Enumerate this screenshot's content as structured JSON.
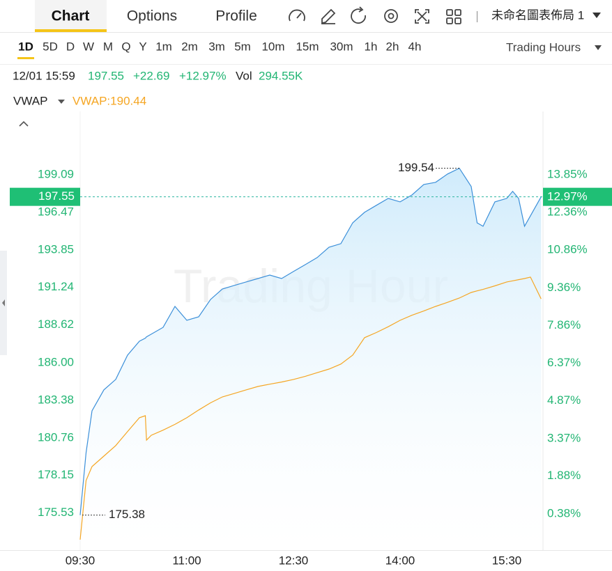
{
  "tabs": [
    "Chart",
    "Options",
    "Profile"
  ],
  "layout_name": "未命名圖表佈局 1",
  "timeframes": [
    "1D",
    "5D",
    "D",
    "W",
    "M",
    "Q",
    "Y",
    "1m",
    "2m",
    "3m",
    "5m",
    "10m",
    "15m",
    "30m",
    "1h",
    "2h",
    "4h"
  ],
  "session_menu": "Trading Hours",
  "info": {
    "time": "12/01 15:59",
    "price": "197.55",
    "change": "+22.69",
    "change_pct": "+12.97%",
    "vol_label": "Vol",
    "volume": "294.55K"
  },
  "indicator": {
    "name": "VWAP",
    "value_label": "VWAP:190.44"
  },
  "watermark": "Trading Hour",
  "chart_data": {
    "type": "line",
    "x": [
      "09:30",
      "09:35",
      "09:40",
      "09:50",
      "10:00",
      "10:10",
      "10:20",
      "10:25",
      "10:26",
      "10:30",
      "10:40",
      "10:50",
      "11:00",
      "11:10",
      "11:20",
      "11:30",
      "11:40",
      "11:50",
      "12:00",
      "12:10",
      "12:20",
      "12:30",
      "12:40",
      "12:50",
      "13:00",
      "13:10",
      "13:20",
      "13:30",
      "13:40",
      "13:50",
      "14:00",
      "14:10",
      "14:20",
      "14:30",
      "14:40",
      "14:50",
      "15:00",
      "15:05",
      "15:10",
      "15:20",
      "15:30",
      "15:35",
      "15:40",
      "15:45",
      "15:50",
      "15:59"
    ],
    "series": [
      {
        "color": "#3b8fd9",
        "values": [
          175.38,
          179.73,
          182.64,
          184.1,
          184.83,
          186.52,
          187.49,
          187.7,
          187.8,
          187.98,
          188.46,
          189.92,
          188.95,
          189.19,
          190.4,
          191.13,
          191.38,
          191.62,
          191.86,
          192.1,
          191.86,
          192.35,
          192.83,
          193.32,
          194.04,
          194.29,
          195.74,
          196.47,
          196.96,
          197.44,
          197.2,
          197.68,
          198.41,
          198.56,
          199.14,
          199.54,
          198.27,
          195.74,
          195.5,
          197.2,
          197.44,
          197.93,
          197.44,
          195.5,
          196.23,
          197.55
        ]
      },
      {
        "name": "VWAP",
        "color": "#f5a623",
        "values": [
          173.67,
          177.79,
          178.76,
          179.49,
          180.22,
          181.2,
          182.16,
          182.3,
          180.6,
          180.94,
          181.3,
          181.7,
          182.16,
          182.7,
          183.2,
          183.61,
          183.85,
          184.1,
          184.34,
          184.5,
          184.65,
          184.83,
          185.05,
          185.3,
          185.55,
          185.9,
          186.52,
          187.74,
          188.1,
          188.5,
          188.95,
          189.3,
          189.6,
          189.92,
          190.2,
          190.5,
          190.89,
          191.0,
          191.1,
          191.35,
          191.62,
          191.7,
          191.78,
          191.86,
          191.96,
          190.44
        ]
      }
    ],
    "xlim": [
      "09:30",
      "16:00"
    ],
    "xticks": [
      "09:30",
      "11:00",
      "12:30",
      "14:00",
      "15:30"
    ],
    "ylim": [
      172.94,
      203.5
    ],
    "yticks": [
      199.09,
      196.47,
      193.85,
      191.24,
      188.62,
      {
        "value": 186,
        "label": "186.00"
      },
      183.38,
      180.76,
      178.15,
      175.53
    ],
    "y2lim": [
      -1.06,
      16.37
    ],
    "y2ticks": [
      {
        "value": 13.85,
        "label": "13.85%"
      },
      {
        "value": 12.36,
        "label": "12.36%"
      },
      {
        "value": 10.86,
        "label": "10.86%"
      },
      {
        "value": 9.36,
        "label": "9.36%"
      },
      {
        "value": 7.86,
        "label": "7.86%"
      },
      {
        "value": 6.37,
        "label": "6.37%"
      },
      {
        "value": 4.87,
        "label": "4.87%"
      },
      {
        "value": 3.37,
        "label": "3.37%"
      },
      {
        "value": 1.88,
        "label": "1.88%"
      },
      {
        "value": 0.38,
        "label": "0.38%"
      }
    ],
    "last_price": 197.55,
    "last_change": {
      "value": 12.97,
      "label": "12.97%"
    },
    "high": 199.54,
    "low": 175.38
  }
}
